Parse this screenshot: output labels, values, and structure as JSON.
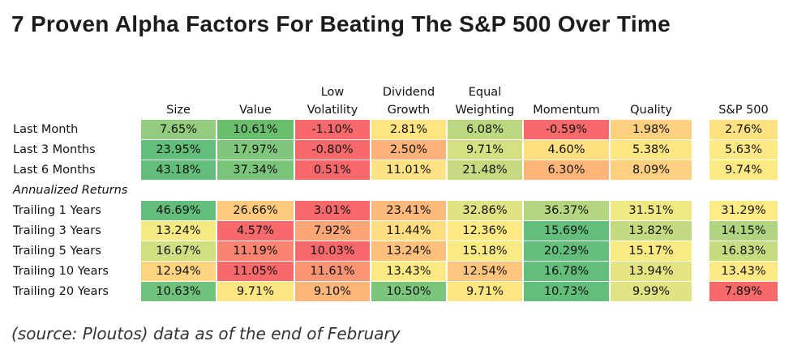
{
  "title": "7 Proven Alpha Factors For Beating The S&P 500 Over Time",
  "source": "(source: Ploutos) data as of the end of February",
  "chart_data": {
    "type": "table",
    "columns": [
      {
        "key": "size",
        "label": "Size",
        "width": 92
      },
      {
        "key": "value",
        "label": "Value",
        "width": 94
      },
      {
        "key": "low_volatility",
        "label": "Low\nVolatility",
        "width": 92
      },
      {
        "key": "dividend_growth",
        "label": "Dividend\nGrowth",
        "width": 92
      },
      {
        "key": "equal_weighting",
        "label": "Equal\nWeighting",
        "width": 92
      },
      {
        "key": "momentum",
        "label": "Momentum",
        "width": 105
      },
      {
        "key": "quality",
        "label": "Quality",
        "width": 100
      },
      {
        "key": "sp500",
        "label": "S&P 500",
        "width": 84,
        "separated": true
      }
    ],
    "rows": [
      {
        "label": "Last Month",
        "values": [
          "7.65%",
          "10.61%",
          "-1.10%",
          "2.81%",
          "6.08%",
          "-0.59%",
          "1.98%",
          "2.76%"
        ],
        "colors": [
          "#93cc7e",
          "#6abe6d",
          "#f8696b",
          "#fee483",
          "#bcd981",
          "#f8696b",
          "#fed07f",
          "#fee282"
        ]
      },
      {
        "label": "Last 3 Months",
        "values": [
          "23.95%",
          "17.97%",
          "-0.80%",
          "2.50%",
          "9.71%",
          "4.60%",
          "5.38%",
          "5.63%"
        ],
        "colors": [
          "#63be7b",
          "#80c77d",
          "#f8696b",
          "#fdb27a",
          "#d5e082",
          "#fee081",
          "#fee683",
          "#ffe984"
        ]
      },
      {
        "label": "Last 6 Months",
        "values": [
          "43.18%",
          "37.34%",
          "0.51%",
          "11.01%",
          "21.48%",
          "6.30%",
          "8.09%",
          "9.74%"
        ],
        "colors": [
          "#63be7b",
          "#7ac47c",
          "#f8696b",
          "#fee283",
          "#c6db81",
          "#fdb57a",
          "#fed07f",
          "#fee983"
        ]
      },
      {
        "label": "Annualized Returns",
        "section": true
      },
      {
        "label": "Trailing 1 Years",
        "values": [
          "46.69%",
          "26.66%",
          "3.01%",
          "23.41%",
          "32.86%",
          "36.37%",
          "31.51%",
          "31.29%"
        ],
        "colors": [
          "#63be7b",
          "#fdca7d",
          "#f8696b",
          "#fdb87b",
          "#dfe383",
          "#b5d680",
          "#f0e884",
          "#ffeb84"
        ]
      },
      {
        "label": "Trailing 3 Years",
        "values": [
          "13.24%",
          "4.57%",
          "7.92%",
          "11.44%",
          "12.36%",
          "15.69%",
          "13.82%",
          "14.15%"
        ],
        "colors": [
          "#f5e984",
          "#f8696b",
          "#fca577",
          "#fede81",
          "#feea83",
          "#63be7b",
          "#c4da80",
          "#b0d47f"
        ]
      },
      {
        "label": "Trailing 5 Years",
        "values": [
          "16.67%",
          "11.19%",
          "10.03%",
          "13.24%",
          "15.18%",
          "20.29%",
          "15.17%",
          "16.83%"
        ],
        "colors": [
          "#cfdf82",
          "#f98570",
          "#f8696b",
          "#fdc07c",
          "#f9ea84",
          "#63be7b",
          "#f9ea84",
          "#c6dc81"
        ]
      },
      {
        "label": "Trailing 10 Years",
        "values": [
          "12.94%",
          "11.05%",
          "11.61%",
          "13.43%",
          "12.54%",
          "16.78%",
          "13.94%",
          "13.43%"
        ],
        "colors": [
          "#fed480",
          "#f8696b",
          "#fa9473",
          "#fee983",
          "#fdc57d",
          "#63be7b",
          "#e4e483",
          "#fee983"
        ]
      },
      {
        "label": "Trailing 20 Years",
        "values": [
          "10.63%",
          "9.71%",
          "9.10%",
          "10.50%",
          "9.71%",
          "10.73%",
          "9.99%",
          "7.89%"
        ],
        "colors": [
          "#6fc17b",
          "#fee783",
          "#fcb67a",
          "#7cc57c",
          "#fee783",
          "#63be7b",
          "#dfe383",
          "#f8696b"
        ]
      }
    ]
  }
}
